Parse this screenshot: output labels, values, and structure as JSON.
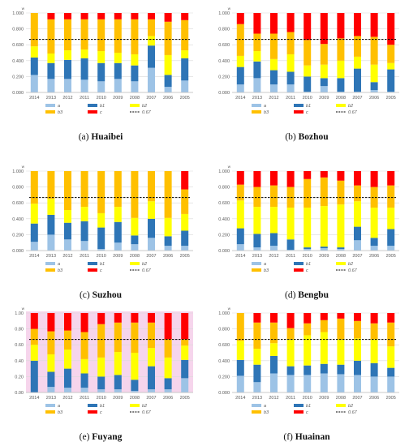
{
  "figure": {
    "captions": [
      {
        "letter": "(a)",
        "name": "Huaibei"
      },
      {
        "letter": "(b)",
        "name": "Bozhou"
      },
      {
        "letter": "(c)",
        "name": "Suzhou"
      },
      {
        "letter": "(d)",
        "name": "Bengbu"
      },
      {
        "letter": "(e)",
        "name": "Fuyang"
      },
      {
        "letter": "(f)",
        "name": "Huainan"
      }
    ]
  },
  "colors": {
    "a": "#9DC3E6",
    "b1": "#2E75B6",
    "b2": "#FFFF00",
    "b3": "#FFC000",
    "c": "#FF0000",
    "threshold": "#000000",
    "fuyang_bg": "#F6D5EC"
  },
  "chart_data": [
    {
      "type": "bar",
      "stacked": true,
      "panel": "Huaibei",
      "categories": [
        "2014",
        "2013",
        "2012",
        "2011",
        "2010",
        "2009",
        "2008",
        "2007",
        "2006",
        "2005"
      ],
      "ylabel": "w",
      "ylim": [
        0,
        1
      ],
      "yticks": [
        "0.000",
        "0.200",
        "0.400",
        "0.600",
        "0.800",
        "1.000"
      ],
      "threshold": 0.667,
      "series": [
        {
          "name": "a",
          "values": [
            0.22,
            0.17,
            0.17,
            0.16,
            0.14,
            0.17,
            0.14,
            0.31,
            0.07,
            0.15
          ]
        },
        {
          "name": "b1",
          "values": [
            0.22,
            0.2,
            0.24,
            0.27,
            0.23,
            0.2,
            0.2,
            0.28,
            0.15,
            0.28
          ]
        },
        {
          "name": "b2",
          "values": [
            0.14,
            0.12,
            0.12,
            0.11,
            0.15,
            0.13,
            0.14,
            0.12,
            0.25,
            0.1
          ]
        },
        {
          "name": "b3",
          "values": [
            0.42,
            0.43,
            0.39,
            0.38,
            0.4,
            0.42,
            0.44,
            0.21,
            0.42,
            0.38
          ]
        },
        {
          "name": "c",
          "values": [
            0.0,
            0.08,
            0.08,
            0.08,
            0.08,
            0.08,
            0.08,
            0.08,
            0.11,
            0.09
          ]
        }
      ],
      "legend": [
        "a",
        "b1",
        "b2",
        "b3",
        "c",
        "0.67"
      ],
      "grid": true
    },
    {
      "type": "bar",
      "stacked": true,
      "panel": "Bozhou",
      "categories": [
        "2014",
        "2013",
        "2012",
        "2011",
        "2010",
        "2009",
        "2008",
        "2007",
        "2006",
        "2005"
      ],
      "ylabel": "w",
      "ylim": [
        0,
        1
      ],
      "yticks": [
        "0.000",
        "0.200",
        "0.400",
        "0.600",
        "0.800",
        "1.000"
      ],
      "threshold": 0.667,
      "series": [
        {
          "name": "a",
          "values": [
            0.1,
            0.18,
            0.1,
            0.1,
            0.01,
            0.08,
            0.01,
            0.01,
            0.03,
            0.01
          ]
        },
        {
          "name": "b1",
          "values": [
            0.22,
            0.21,
            0.18,
            0.16,
            0.19,
            0.1,
            0.17,
            0.29,
            0.1,
            0.28
          ]
        },
        {
          "name": "b2",
          "values": [
            0.14,
            0.13,
            0.14,
            0.22,
            0.14,
            0.17,
            0.22,
            0.15,
            0.22,
            0.08
          ]
        },
        {
          "name": "b3",
          "values": [
            0.4,
            0.22,
            0.32,
            0.28,
            0.32,
            0.26,
            0.28,
            0.26,
            0.35,
            0.23
          ]
        },
        {
          "name": "c",
          "values": [
            0.14,
            0.26,
            0.26,
            0.24,
            0.34,
            0.39,
            0.32,
            0.29,
            0.3,
            0.4
          ]
        }
      ],
      "legend": [
        "a",
        "b1",
        "b2",
        "b3",
        "c",
        "0.67"
      ],
      "grid": true
    },
    {
      "type": "bar",
      "stacked": true,
      "panel": "Suzhou",
      "categories": [
        "2014",
        "2013",
        "2012",
        "2011",
        "2010",
        "2009",
        "2008",
        "2007",
        "2006",
        "2005"
      ],
      "ylabel": "w",
      "ylim": [
        0,
        1
      ],
      "yticks": [
        "0.000",
        "0.200",
        "0.400",
        "0.600",
        "0.800",
        "1.000"
      ],
      "threshold": 0.667,
      "series": [
        {
          "name": "a",
          "values": [
            0.11,
            0.2,
            0.14,
            0.12,
            0.02,
            0.1,
            0.08,
            0.16,
            0.06,
            0.06
          ]
        },
        {
          "name": "b1",
          "values": [
            0.23,
            0.25,
            0.21,
            0.25,
            0.27,
            0.26,
            0.11,
            0.24,
            0.12,
            0.19
          ]
        },
        {
          "name": "b2",
          "values": [
            0.25,
            0.2,
            0.16,
            0.18,
            0.18,
            0.19,
            0.22,
            0.22,
            0.23,
            0.21
          ]
        },
        {
          "name": "b3",
          "values": [
            0.41,
            0.35,
            0.49,
            0.45,
            0.53,
            0.45,
            0.59,
            0.38,
            0.59,
            0.31
          ]
        },
        {
          "name": "c",
          "values": [
            0.0,
            0.0,
            0.0,
            0.0,
            0.0,
            0.0,
            0.0,
            0.0,
            0.0,
            0.23
          ]
        }
      ],
      "legend": [
        "a",
        "b1",
        "b2",
        "b3",
        "c",
        "0.67"
      ],
      "grid": true
    },
    {
      "type": "bar",
      "stacked": true,
      "panel": "Bengbu",
      "categories": [
        "2014",
        "2013",
        "2012",
        "2011",
        "2010",
        "2009",
        "2008",
        "2007",
        "2006",
        "2005"
      ],
      "ylabel": "w",
      "ylim": [
        0,
        1
      ],
      "yticks": [
        "0.000",
        "0.200",
        "0.400",
        "0.600",
        "0.800",
        "1.000"
      ],
      "threshold": 0.667,
      "series": [
        {
          "name": "a",
          "values": [
            0.08,
            0.04,
            0.06,
            0.01,
            0.02,
            0.03,
            0.02,
            0.13,
            0.06,
            0.06
          ]
        },
        {
          "name": "b1",
          "values": [
            0.2,
            0.17,
            0.16,
            0.13,
            0.02,
            0.02,
            0.02,
            0.17,
            0.1,
            0.21
          ]
        },
        {
          "name": "b2",
          "values": [
            0.35,
            0.34,
            0.33,
            0.4,
            0.5,
            0.51,
            0.54,
            0.32,
            0.38,
            0.27
          ]
        },
        {
          "name": "b3",
          "values": [
            0.2,
            0.25,
            0.27,
            0.26,
            0.36,
            0.36,
            0.3,
            0.2,
            0.26,
            0.28
          ]
        },
        {
          "name": "c",
          "values": [
            0.17,
            0.2,
            0.18,
            0.2,
            0.1,
            0.08,
            0.12,
            0.18,
            0.2,
            0.18
          ]
        }
      ],
      "legend": [
        "a",
        "b1",
        "b2",
        "b3",
        "c",
        "0.67"
      ],
      "grid": true
    },
    {
      "type": "bar",
      "stacked": true,
      "panel": "Fuyang",
      "categories": [
        "2014",
        "2013",
        "2012",
        "2011",
        "2010",
        "2009",
        "2008",
        "2007",
        "2006",
        "2005"
      ],
      "ylabel": "w",
      "ylim": [
        0,
        1
      ],
      "yticks": [
        "0.00",
        "0.20",
        "0.40",
        "0.60",
        "0.80",
        "1.00"
      ],
      "threshold": 0.667,
      "series": [
        {
          "name": "a",
          "values": [
            0.0,
            0.07,
            0.06,
            0.06,
            0.04,
            0.04,
            0.02,
            0.04,
            0.04,
            0.18
          ]
        },
        {
          "name": "b1",
          "values": [
            0.4,
            0.19,
            0.24,
            0.18,
            0.16,
            0.18,
            0.14,
            0.29,
            0.14,
            0.23
          ]
        },
        {
          "name": "b2",
          "values": [
            0.2,
            0.22,
            0.24,
            0.18,
            0.24,
            0.29,
            0.34,
            0.23,
            0.26,
            0.18
          ]
        },
        {
          "name": "b3",
          "values": [
            0.2,
            0.29,
            0.24,
            0.34,
            0.42,
            0.37,
            0.38,
            0.32,
            0.23,
            0.08
          ]
        },
        {
          "name": "c",
          "values": [
            0.2,
            0.23,
            0.22,
            0.24,
            0.14,
            0.12,
            0.12,
            0.12,
            0.33,
            0.33
          ]
        }
      ],
      "legend": [
        "a",
        "b1",
        "b2",
        "b3",
        "c",
        "0.67"
      ],
      "grid": true
    },
    {
      "type": "bar",
      "stacked": true,
      "panel": "Huainan",
      "categories": [
        "2014",
        "2013",
        "2012",
        "2011",
        "2010",
        "2009",
        "2008",
        "2007",
        "2006",
        "2005"
      ],
      "ylabel": "w",
      "ylim": [
        0,
        1
      ],
      "yticks": [
        "0.000",
        "0.200",
        "0.400",
        "0.600",
        "0.800",
        "1.000"
      ],
      "threshold": 0.667,
      "series": [
        {
          "name": "a",
          "values": [
            0.21,
            0.13,
            0.24,
            0.22,
            0.22,
            0.24,
            0.23,
            0.22,
            0.2,
            0.2
          ]
        },
        {
          "name": "b1",
          "values": [
            0.2,
            0.22,
            0.22,
            0.11,
            0.12,
            0.12,
            0.12,
            0.18,
            0.17,
            0.11
          ]
        },
        {
          "name": "b2",
          "values": [
            0.24,
            0.2,
            0.16,
            0.34,
            0.38,
            0.4,
            0.32,
            0.28,
            0.3,
            0.27
          ]
        },
        {
          "name": "b3",
          "values": [
            0.35,
            0.33,
            0.26,
            0.14,
            0.15,
            0.15,
            0.26,
            0.22,
            0.2,
            0.3
          ]
        },
        {
          "name": "c",
          "values": [
            0.0,
            0.12,
            0.12,
            0.19,
            0.13,
            0.09,
            0.07,
            0.1,
            0.13,
            0.12
          ]
        }
      ],
      "legend": [
        "a",
        "b1",
        "b2",
        "b3",
        "c",
        "0.67"
      ],
      "grid": true
    }
  ]
}
